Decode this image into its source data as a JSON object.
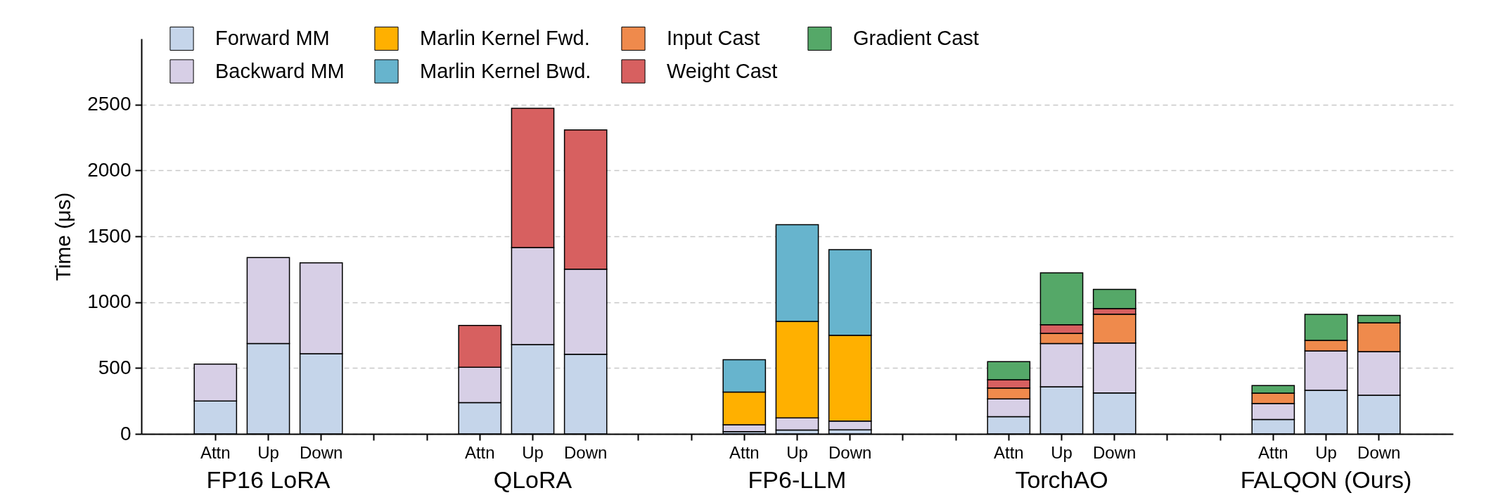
{
  "chart_data": {
    "type": "bar",
    "stacked": true,
    "ylabel": "Time (μs)",
    "categories": [
      "Attn",
      "Up",
      "Down",
      null,
      null,
      "Attn",
      "Up",
      "Down",
      null,
      null,
      "Attn",
      "Up",
      "Down",
      null,
      null,
      "Attn",
      "Up",
      "Down",
      null,
      null,
      "Attn",
      "Up",
      "Down"
    ],
    "series": [
      {
        "name": "Forward MM",
        "color": "#c5d5ea",
        "values": [
          250,
          686,
          608,
          null,
          null,
          238,
          678,
          605,
          null,
          null,
          18,
          29,
          31,
          null,
          null,
          131,
          357,
          311,
          null,
          null,
          109,
          331,
          294
        ]
      },
      {
        "name": "Backward MM",
        "color": "#d7cfe6",
        "values": [
          280,
          652,
          691,
          null,
          null,
          268,
          737,
          645,
          null,
          null,
          51,
          93,
          67,
          null,
          null,
          134,
          329,
          379,
          null,
          null,
          122,
          299,
          331
        ]
      },
      {
        "name": "Marlin Kernel Fwd.",
        "color": "#ffb000",
        "values": [
          null,
          null,
          null,
          null,
          null,
          null,
          null,
          null,
          null,
          null,
          249,
          732,
          651,
          null,
          null,
          null,
          null,
          null,
          null,
          null,
          null,
          null,
          null
        ]
      },
      {
        "name": "Marlin Kernel Bwd.",
        "color": "#67b4cd",
        "values": [
          null,
          null,
          null,
          null,
          null,
          null,
          null,
          null,
          null,
          null,
          245,
          734,
          650,
          null,
          null,
          null,
          null,
          null,
          null,
          null,
          null,
          null,
          null
        ]
      },
      {
        "name": "Input Cast",
        "color": "#ef8a4c",
        "values": [
          null,
          null,
          null,
          null,
          null,
          null,
          null,
          null,
          null,
          null,
          null,
          null,
          null,
          null,
          null,
          83,
          77,
          219,
          null,
          null,
          78,
          80,
          219
        ]
      },
      {
        "name": "Weight Cast",
        "color": "#d76060",
        "values": [
          null,
          null,
          null,
          null,
          null,
          318,
          1056,
          1058,
          null,
          null,
          null,
          null,
          null,
          null,
          null,
          63,
          66,
          42,
          null,
          null,
          null,
          null,
          null
        ]
      },
      {
        "name": "Gradient Cast",
        "color": "#55a868",
        "values": [
          null,
          null,
          null,
          null,
          null,
          null,
          null,
          null,
          null,
          null,
          null,
          null,
          null,
          null,
          null,
          138,
          394,
          146,
          null,
          null,
          58,
          197,
          56
        ]
      }
    ],
    "annotations": [
      "FP16 LoRA",
      "QLoRA",
      "FP6-LLM",
      "TorchAO",
      "FALQON (Ours)"
    ],
    "ylim": [
      0,
      3000
    ],
    "yticks": [
      0,
      500,
      1000,
      1500,
      2000,
      2500
    ],
    "grid": "y",
    "legend": "top"
  }
}
